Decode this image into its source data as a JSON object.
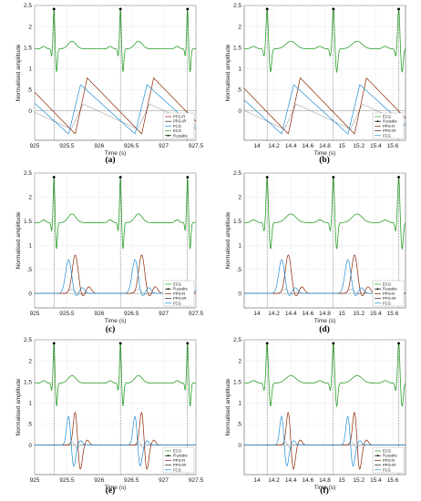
{
  "colors": {
    "ecg": "#2ca02c",
    "ppg_r": "#8b2500",
    "ppg_ir": "#2a2a2a",
    "fcg": "#1f8fd6",
    "peak": "#000000"
  },
  "chart_data": [
    {
      "panel": "(a)",
      "type": "line",
      "xlabel": "Time (s)",
      "ylabel": "Normalised amplitude",
      "xlim": [
        925,
        927.5
      ],
      "ylim": [
        -0.7,
        2.5
      ],
      "grid": true,
      "xticks": [
        "925",
        "925.5",
        "926",
        "926.5",
        "927",
        "927.5"
      ],
      "yticks": [
        "0",
        ".5",
        "1",
        "1.5",
        "2",
        "2.5"
      ],
      "legend": [
        "PPG-R",
        "PPG-IR",
        "FCG",
        "ECG",
        "R-peaks"
      ],
      "legend_position": "lower-right",
      "r_peaks_x": [
        925.3,
        926.33,
        927.37
      ],
      "series": [
        {
          "name": "ECG",
          "values": "ECG trace at baseline ~1.5 with R-peaks reaching ~2.45"
        },
        {
          "name": "PPG-R",
          "values": "pulse rising to ~0.8 after each R-peak, troughs ~-0.55"
        },
        {
          "name": "FCG",
          "values": "pulse rising to ~0.65, troughs ~-0.6"
        }
      ]
    },
    {
      "panel": "(b)",
      "type": "line",
      "xlabel": "Time (s)",
      "ylabel": "Normalised amplitude",
      "xlim": [
        13.85,
        15.75
      ],
      "ylim": [
        -0.7,
        2.5
      ],
      "grid": true,
      "xticks": [
        "14",
        "14.2",
        "14.4",
        "14.6",
        "14.8",
        "15",
        "15.2",
        "15.4",
        "15.6"
      ],
      "yticks": [
        "0",
        ".5",
        "1",
        "1.5",
        "2",
        "2.5"
      ],
      "legend": [
        "ECG",
        "R-peaks",
        "PPG-R",
        "PPG-IR",
        "FCG"
      ],
      "legend_position": "lower-right",
      "r_peaks_x": [
        14.12,
        14.9,
        15.67
      ]
    },
    {
      "panel": "(c)",
      "type": "line",
      "xlabel": "Time (s)",
      "ylabel": "Normalised amplitude",
      "xlim": [
        925,
        927.5
      ],
      "ylim": [
        -0.3,
        2.5
      ],
      "grid": true,
      "xticks": [
        "925",
        "925.5",
        "926",
        "926.5",
        "927",
        "927.5"
      ],
      "yticks": [
        "0",
        ".5",
        "1",
        "1.5",
        "2",
        "2.5"
      ],
      "legend": [
        "ECG",
        "R-peaks",
        "PPG-R",
        "PPG-IR",
        "FCG"
      ],
      "legend_position": "lower-right",
      "r_peaks_x": [
        925.3,
        926.33,
        927.37
      ]
    },
    {
      "panel": "(d)",
      "type": "line",
      "xlabel": "Time (s)",
      "ylabel": "Normalised amplitude",
      "xlim": [
        13.85,
        15.75
      ],
      "ylim": [
        -0.3,
        2.5
      ],
      "grid": true,
      "xticks": [
        "14",
        "14.2",
        "14.4",
        "14.6",
        "14.8",
        "15",
        "15.2",
        "15.4",
        "15.6"
      ],
      "yticks": [
        "0",
        ".5",
        "1",
        "1.5",
        "2",
        "2.5"
      ],
      "legend": [
        "ECG",
        "R-peaks",
        "PPG-R",
        "PPG-IR",
        "FCG"
      ],
      "legend_position": "lower-right",
      "r_peaks_x": [
        14.12,
        14.9,
        15.67
      ]
    },
    {
      "panel": "(e)",
      "type": "line",
      "xlabel": "Time (s)",
      "ylabel": "Normalised amplitude",
      "xlim": [
        925,
        927.5
      ],
      "ylim": [
        -0.7,
        2.5
      ],
      "grid": true,
      "xticks": [
        "925",
        "925.5",
        "926",
        "926.5",
        "927",
        "927.5"
      ],
      "yticks": [
        "0",
        ".5",
        "1",
        "1.5",
        "2",
        "2.5"
      ],
      "legend": [
        "ECG",
        "R-peaks",
        "PPG-R",
        "PPG-IR",
        "FCG"
      ],
      "legend_position": "lower-right",
      "r_peaks_x": [
        925.3,
        926.33,
        927.37
      ]
    },
    {
      "panel": "(f)",
      "type": "line",
      "xlabel": "Time (s)",
      "ylabel": "Normalised amplitude",
      "xlim": [
        13.85,
        15.75
      ],
      "ylim": [
        -0.7,
        2.5
      ],
      "grid": true,
      "xticks": [
        "14",
        "14.2",
        "14.4",
        "14.6",
        "14.8",
        "15",
        "15.2",
        "15.4",
        "15.6"
      ],
      "yticks": [
        "0",
        ".5",
        "1",
        "1.5",
        "2",
        "2.5"
      ],
      "legend": [
        "ECG",
        "R-peaks",
        "PPG-R",
        "PPG-IR",
        "FCG"
      ],
      "legend_position": "lower-right",
      "r_peaks_x": [
        14.12,
        14.9,
        15.67
      ]
    }
  ]
}
